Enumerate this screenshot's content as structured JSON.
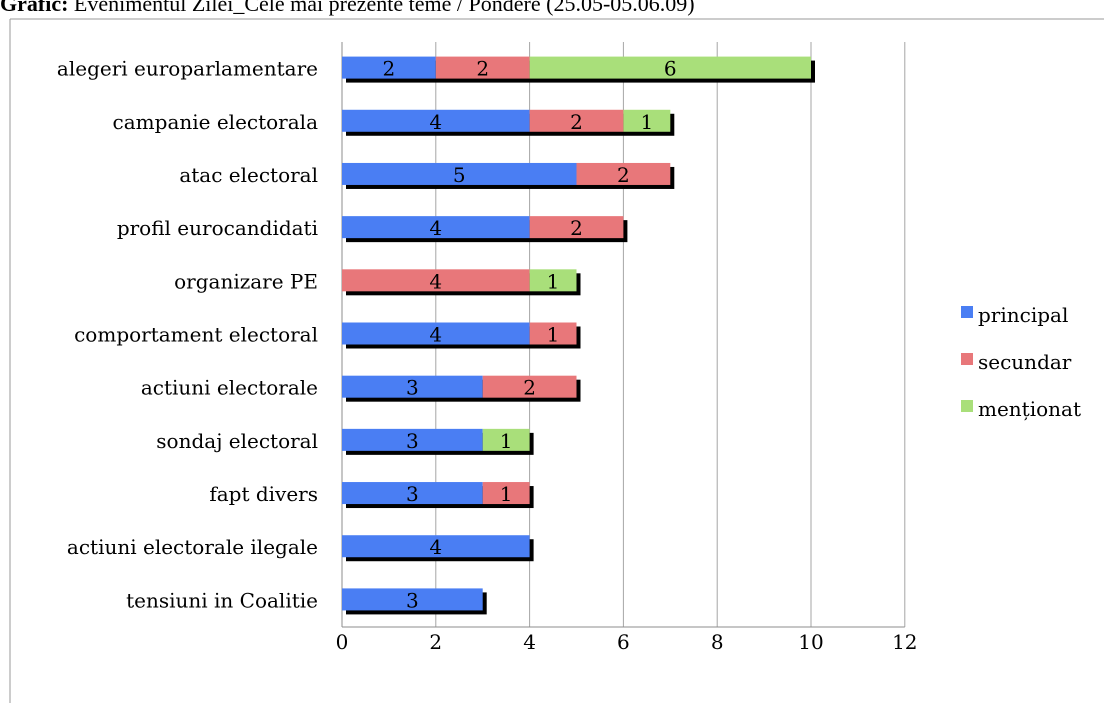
{
  "heading": {
    "label": "Grafic:",
    "text": " Evenimentul Zilei_Cele mai prezente teme / Pondere (25.05-05.06.09)"
  },
  "chart_data": {
    "type": "bar",
    "orientation": "horizontal",
    "stacked": true,
    "title": "",
    "xlabel": "",
    "ylabel": "",
    "xlim": [
      0,
      12
    ],
    "xticks": [
      0,
      2,
      4,
      6,
      8,
      10,
      12
    ],
    "grid": true,
    "legend": "right",
    "categories": [
      "alegeri europarlamentare",
      "campanie electorala",
      "atac electoral",
      "profil eurocandidati",
      "organizare PE",
      "comportament electoral",
      "actiuni electorale",
      "sondaj electoral",
      "fapt divers",
      "actiuni electorale ilegale",
      "tensiuni in Coalitie"
    ],
    "series": [
      {
        "name": "principal",
        "color": "#4a7ef3",
        "values": [
          2,
          4,
          5,
          4,
          0,
          4,
          3,
          3,
          3,
          4,
          3
        ]
      },
      {
        "name": "secundar",
        "color": "#e8777a",
        "values": [
          2,
          2,
          2,
          2,
          4,
          1,
          2,
          0,
          1,
          0,
          0
        ]
      },
      {
        "name": "menționat",
        "color": "#a9df7a",
        "values": [
          6,
          1,
          0,
          0,
          1,
          0,
          0,
          1,
          0,
          0,
          0
        ]
      }
    ],
    "segment_labels": [
      [
        "2",
        "2",
        "6"
      ],
      [
        "4",
        "2",
        "1"
      ],
      [
        "5",
        "2"
      ],
      [
        "4",
        "2"
      ],
      [
        "4",
        "1"
      ],
      [
        "4",
        "1"
      ],
      [
        "3",
        "2"
      ],
      [
        "3",
        "1"
      ],
      [
        "3",
        "1"
      ],
      [
        "4"
      ],
      [
        "3"
      ]
    ]
  }
}
